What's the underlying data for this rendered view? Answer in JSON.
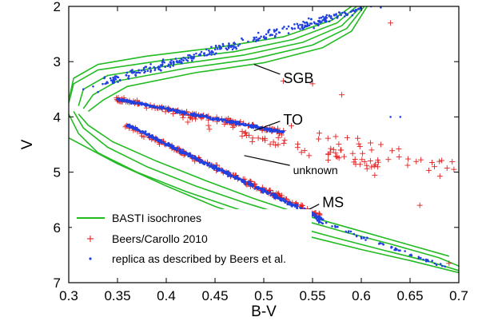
{
  "chart_data": {
    "type": "scatter",
    "title": "",
    "xlabel": "B-V",
    "ylabel": "V",
    "xlim": [
      0.3,
      0.7
    ],
    "ylim": [
      2,
      7
    ],
    "y_inverted": true,
    "x_ticks": [
      "0.3",
      "0.35",
      "0.4",
      "0.45",
      "0.5",
      "0.55",
      "0.6",
      "0.65",
      "0.7"
    ],
    "y_ticks": [
      "2",
      "3",
      "4",
      "5",
      "6",
      "7"
    ],
    "grid": false,
    "legend_position": "bottom-left",
    "colors": {
      "isochrone": "#22bb22",
      "beers": "#e02020",
      "replica": "#2040e0"
    },
    "annotations": [
      {
        "text": "SGB",
        "x": 0.52,
        "y": 3.3,
        "arrow_to": [
          0.49,
          3.05
        ]
      },
      {
        "text": "TO",
        "x": 0.52,
        "y": 4.05,
        "arrow_to": [
          0.49,
          4.25
        ]
      },
      {
        "text": "unknown",
        "x": 0.53,
        "y": 4.95,
        "arrow_to": [
          0.48,
          4.7
        ]
      },
      {
        "text": "MS",
        "x": 0.56,
        "y": 5.55,
        "arrow_to": [
          0.535,
          5.78
        ]
      }
    ],
    "series": [
      {
        "name": "BASTI isochrones",
        "type": "line",
        "curves": [
          [
            [
              0.3,
              4.38
            ],
            [
              0.35,
              4.85
            ],
            [
              0.4,
              5.25
            ],
            [
              0.45,
              5.62
            ],
            [
              0.5,
              5.92
            ],
            [
              0.55,
              6.18
            ],
            [
              0.6,
              6.4
            ],
            [
              0.65,
              6.6
            ],
            [
              0.7,
              6.82
            ]
          ],
          [
            [
              0.3,
              3.95
            ],
            [
              0.31,
              4.3
            ],
            [
              0.33,
              4.65
            ],
            [
              0.37,
              5.0
            ],
            [
              0.42,
              5.35
            ],
            [
              0.47,
              5.65
            ],
            [
              0.52,
              5.93
            ],
            [
              0.57,
              6.17
            ],
            [
              0.62,
              6.4
            ],
            [
              0.67,
              6.62
            ],
            [
              0.7,
              6.78
            ]
          ],
          [
            [
              0.3,
              3.7
            ],
            [
              0.305,
              3.3
            ],
            [
              0.33,
              3.05
            ],
            [
              0.38,
              2.9
            ],
            [
              0.45,
              2.75
            ],
            [
              0.52,
              2.55
            ],
            [
              0.57,
              2.25
            ],
            [
              0.59,
              2.0
            ]
          ],
          [
            [
              0.3,
              3.75
            ],
            [
              0.305,
              3.4
            ],
            [
              0.33,
              3.15
            ],
            [
              0.4,
              2.97
            ],
            [
              0.47,
              2.82
            ],
            [
              0.53,
              2.6
            ],
            [
              0.575,
              2.3
            ],
            [
              0.595,
              2.0
            ]
          ],
          [
            [
              0.31,
              3.8
            ],
            [
              0.315,
              3.5
            ],
            [
              0.34,
              3.25
            ],
            [
              0.41,
              3.05
            ],
            [
              0.48,
              2.88
            ],
            [
              0.54,
              2.65
            ],
            [
              0.58,
              2.35
            ],
            [
              0.6,
              2.0
            ]
          ],
          [
            [
              0.315,
              3.85
            ],
            [
              0.325,
              3.6
            ],
            [
              0.35,
              3.35
            ],
            [
              0.42,
              3.12
            ],
            [
              0.49,
              2.95
            ],
            [
              0.55,
              2.7
            ],
            [
              0.585,
              2.4
            ],
            [
              0.603,
              2.0
            ]
          ],
          [
            [
              0.32,
              3.9
            ],
            [
              0.335,
              3.7
            ],
            [
              0.36,
              3.45
            ],
            [
              0.43,
              3.2
            ],
            [
              0.5,
              3.02
            ],
            [
              0.56,
              2.75
            ],
            [
              0.59,
              2.45
            ],
            [
              0.606,
              2.0
            ]
          ],
          [
            [
              0.305,
              3.9
            ],
            [
              0.315,
              4.2
            ],
            [
              0.34,
              4.55
            ],
            [
              0.38,
              4.9
            ],
            [
              0.43,
              5.25
            ],
            [
              0.48,
              5.55
            ],
            [
              0.53,
              5.82
            ],
            [
              0.58,
              6.07
            ],
            [
              0.63,
              6.3
            ],
            [
              0.68,
              6.55
            ],
            [
              0.7,
              6.7
            ]
          ],
          [
            [
              0.31,
              3.95
            ],
            [
              0.32,
              4.15
            ],
            [
              0.345,
              4.45
            ],
            [
              0.39,
              4.8
            ],
            [
              0.44,
              5.15
            ],
            [
              0.49,
              5.48
            ],
            [
              0.54,
              5.77
            ],
            [
              0.59,
              6.02
            ],
            [
              0.64,
              6.27
            ],
            [
              0.69,
              6.52
            ]
          ]
        ]
      },
      {
        "name": "Beers/Carollo 2010",
        "type": "scatter",
        "marker": "+",
        "bands": [
          {
            "x0": 0.35,
            "y0": 3.68,
            "x1": 0.52,
            "y1": 4.28,
            "spread": 0.05,
            "count": 130
          },
          {
            "x0": 0.36,
            "y0": 4.18,
            "x1": 0.56,
            "y1": 5.8,
            "spread": 0.05,
            "count": 170
          },
          {
            "x0": 0.4,
            "y0": 3.95,
            "x1": 0.62,
            "y1": 4.9,
            "spread": 0.15,
            "count": 70
          },
          {
            "x0": 0.5,
            "y0": 4.1,
            "x1": 0.7,
            "y1": 4.95,
            "spread": 0.2,
            "count": 30
          }
        ],
        "points": [
          [
            0.63,
            2.3
          ],
          [
            0.52,
            3.35
          ],
          [
            0.55,
            3.4
          ],
          [
            0.58,
            3.6
          ],
          [
            0.66,
            5.6
          ],
          [
            0.69,
            6.65
          ],
          [
            0.62,
            4.5
          ],
          [
            0.675,
            4.9
          ],
          [
            0.695,
            4.95
          ]
        ]
      },
      {
        "name": "replica as described by Beers et al.",
        "type": "scatter",
        "marker": "dot",
        "bands": [
          {
            "x0": 0.35,
            "y0": 3.68,
            "x1": 0.52,
            "y1": 4.28,
            "spread": 0.035,
            "count": 380
          },
          {
            "x0": 0.36,
            "y0": 4.15,
            "x1": 0.56,
            "y1": 5.85,
            "spread": 0.04,
            "count": 520
          },
          {
            "x0": 0.34,
            "y0": 3.35,
            "x1": 0.6,
            "y1": 2.05,
            "spread": 0.1,
            "count": 320
          },
          {
            "x0": 0.55,
            "y0": 5.85,
            "x1": 0.69,
            "y1": 6.75,
            "spread": 0.04,
            "count": 60
          }
        ],
        "points": [
          [
            0.61,
            2.0
          ],
          [
            0.62,
            2.02
          ],
          [
            0.33,
            3.55
          ],
          [
            0.315,
            3.5
          ],
          [
            0.325,
            3.45
          ],
          [
            0.63,
            4.0
          ],
          [
            0.64,
            4.0
          ]
        ]
      }
    ]
  }
}
